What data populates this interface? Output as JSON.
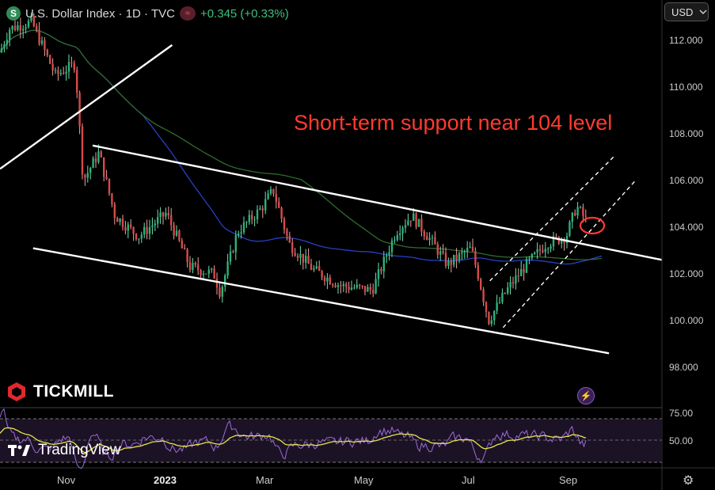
{
  "header": {
    "symbol_icon": "S",
    "title": "U.S. Dollar Index · 1D · TVC",
    "indicator_icon": "≈",
    "change": "+0.345 (+0.33%)"
  },
  "currency_button": {
    "label": "USD",
    "icon": "chevron-down-icon"
  },
  "branding": {
    "tickmill": "TICKMILL",
    "tradingview": "TradingView"
  },
  "colors": {
    "up": "#2ab27b",
    "down": "#d84a4a",
    "ma_red": "#c0392b",
    "ma_blue": "#2541c4",
    "ma_green": "#2e6b2e",
    "annotation": "#ff3b30",
    "rsi_line": "#9b6bd6",
    "rsi_signal": "#e6e64a",
    "rsi_band": "#1c1226"
  },
  "chart_data": {
    "type": "candlestick",
    "annotation": "Short-term support near 104 level",
    "y_ticks": [
      "112.000",
      "110.000",
      "108.000",
      "106.000",
      "104.000",
      "102.000",
      "100.000",
      "98.000"
    ],
    "ylim": [
      96.5,
      113.2
    ],
    "x_ticks": [
      "Nov",
      "2023",
      "Mar",
      "May",
      "Jul",
      "Sep"
    ],
    "rsi": {
      "ticks": [
        "75.00",
        "50.00"
      ],
      "levels": [
        70,
        50,
        30
      ]
    },
    "trendlines": [
      {
        "name": "upper-channel",
        "x": [
          0.14,
          1.0
        ],
        "y": [
          107.5,
          102.6
        ]
      },
      {
        "name": "lower-channel",
        "x": [
          0.05,
          0.92
        ],
        "y": [
          103.1,
          98.6
        ]
      },
      {
        "name": "prior-uptrend",
        "x": [
          0.0,
          0.26
        ],
        "y": [
          106.5,
          111.8
        ]
      },
      {
        "name": "short-channel-upper",
        "x": [
          0.74,
          0.93
        ],
        "y": [
          101.7,
          107.1
        ]
      },
      {
        "name": "short-channel-lower",
        "x": [
          0.76,
          0.96
        ],
        "y": [
          99.7,
          106.0
        ]
      }
    ]
  }
}
